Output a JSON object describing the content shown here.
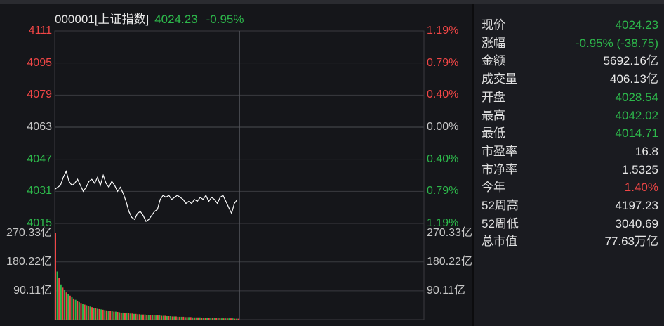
{
  "header": {
    "code_name": "000001[上证指数]",
    "price": "4024.23",
    "change_pct": "-0.95%"
  },
  "chart_data": {
    "type": "line",
    "price_axis": {
      "ticks": [
        {
          "label": "4111",
          "value": 4111,
          "pct": "1.19%",
          "color": "red"
        },
        {
          "label": "4095",
          "value": 4095,
          "pct": "0.79%",
          "color": "red"
        },
        {
          "label": "4079",
          "value": 4079,
          "pct": "0.40%",
          "color": "red"
        },
        {
          "label": "4063",
          "value": 4063,
          "pct": "0.00%",
          "color": "gray"
        },
        {
          "label": "4047",
          "value": 4047,
          "pct": "0.40%",
          "color": "green"
        },
        {
          "label": "4031",
          "value": 4031,
          "pct": "0.79%",
          "color": "green"
        },
        {
          "label": "4015",
          "value": 4015,
          "pct": "1.19%",
          "color": "green"
        }
      ],
      "ylim": [
        4015,
        4111
      ]
    },
    "volume_axis": {
      "ticks": [
        "270.33亿",
        "180.22亿",
        "90.11亿"
      ],
      "tick_values": [
        270.33,
        180.22,
        90.11
      ]
    },
    "price_series": [
      4032,
      4033,
      4034,
      4038,
      4041,
      4036,
      4034,
      4035,
      4037,
      4034,
      4031,
      4033,
      4036,
      4037,
      4035,
      4038,
      4034,
      4039,
      4035,
      4033,
      4036,
      4034,
      4031,
      4033,
      4030,
      4026,
      4021,
      4018,
      4017,
      4020,
      4021,
      4019,
      4016,
      4017,
      4019,
      4021,
      4022,
      4027,
      4029,
      4028,
      4029,
      4027,
      4028,
      4029,
      4028,
      4027,
      4025,
      4026,
      4025,
      4027,
      4026,
      4028,
      4027,
      4029,
      4026,
      4028,
      4027,
      4025,
      4028,
      4029,
      4026,
      4023,
      4020,
      4025,
      4027
    ],
    "volume_series": [
      270,
      150,
      130,
      110,
      100,
      92,
      85,
      80,
      75,
      70,
      66,
      62,
      58,
      55,
      52,
      50,
      47,
      45,
      43,
      41,
      39,
      37,
      36,
      34,
      33,
      32,
      31,
      30,
      29,
      28,
      27,
      26,
      25,
      25,
      24,
      23,
      22,
      22,
      21,
      20,
      20,
      19,
      19,
      18,
      18,
      17,
      17,
      16,
      16,
      16,
      15,
      15,
      14,
      14,
      14,
      13,
      13,
      13,
      12,
      12,
      12,
      11,
      11,
      11,
      10,
      10,
      10,
      9,
      9,
      9,
      9,
      8,
      8,
      8,
      8,
      7,
      7,
      7,
      7,
      7,
      6,
      6,
      6,
      6,
      6,
      5,
      5,
      5,
      5,
      5,
      5,
      4,
      4,
      4,
      4,
      4,
      4,
      4,
      3,
      3,
      3
    ],
    "volume_ylim": [
      0,
      300
    ]
  },
  "quote": [
    {
      "label": "现价",
      "value": "4024.23",
      "color": "green"
    },
    {
      "label": "涨幅",
      "value": "-0.95% (-38.75)",
      "color": "green"
    },
    {
      "label": "金额",
      "value": "5692.16亿",
      "color": "white"
    },
    {
      "label": "成交量",
      "value": "406.13亿",
      "color": "white"
    },
    {
      "label": "开盘",
      "value": "4028.54",
      "color": "green"
    },
    {
      "label": "最高",
      "value": "4042.02",
      "color": "green"
    },
    {
      "label": "最低",
      "value": "4014.71",
      "color": "green"
    },
    {
      "label": "市盈率",
      "value": "16.8",
      "color": "white"
    },
    {
      "label": "市净率",
      "value": "1.5325",
      "color": "white"
    },
    {
      "label": "今年",
      "value": "1.40%",
      "color": "red"
    },
    {
      "label": "52周高",
      "value": "4197.23",
      "color": "white"
    },
    {
      "label": "52周低",
      "value": "3040.69",
      "color": "white"
    },
    {
      "label": "总市值",
      "value": "77.63万亿",
      "color": "white"
    }
  ],
  "colors": {
    "up": "#f04646",
    "down": "#2db84b",
    "grid": "#3a3b40",
    "line": "#ffffff"
  }
}
